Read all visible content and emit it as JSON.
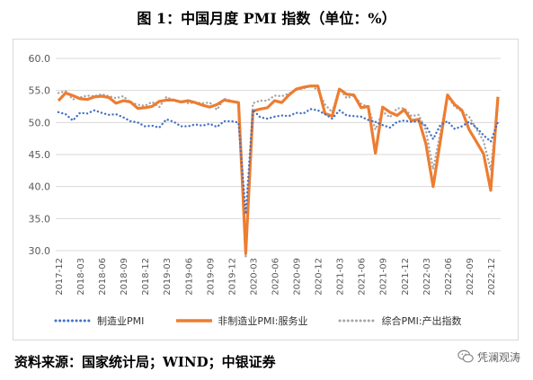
{
  "title": "图 1：中国月度 PMI 指数（单位：%）",
  "source": "资料来源：国家统计局；WIND；中银证券",
  "watermark": {
    "text": "凭澜观涛",
    "icon": "wechat-icon"
  },
  "chart_data": {
    "type": "line",
    "title": "图 1：中国月度 PMI 指数（单位：%）",
    "xlabel": "",
    "ylabel": "",
    "ylim": [
      30.0,
      60.0
    ],
    "yticks": [
      "60.0",
      "55.0",
      "50.0",
      "45.0",
      "40.0",
      "35.0",
      "30.0"
    ],
    "xtick_labels": [
      "2017-12",
      "2018-03",
      "2018-06",
      "2018-09",
      "2018-12",
      "2019-03",
      "2019-06",
      "2019-09",
      "2019-12",
      "2020-03",
      "2020-06",
      "2020-09",
      "2020-12",
      "2021-03",
      "2021-06",
      "2021-09",
      "2021-12",
      "2022-03",
      "2022-06",
      "2022-09",
      "2022-12"
    ],
    "grid": "horizontal",
    "legend_position": "bottom",
    "colors": {
      "manufacturing": "#4472C4",
      "non_manufacturing": "#ED7D31",
      "composite": "#A5A5A5"
    },
    "x": [
      "2017-12",
      "2018-01",
      "2018-02",
      "2018-03",
      "2018-04",
      "2018-05",
      "2018-06",
      "2018-07",
      "2018-08",
      "2018-09",
      "2018-10",
      "2018-11",
      "2018-12",
      "2019-01",
      "2019-02",
      "2019-03",
      "2019-04",
      "2019-05",
      "2019-06",
      "2019-07",
      "2019-08",
      "2019-09",
      "2019-10",
      "2019-11",
      "2019-12",
      "2020-01",
      "2020-02",
      "2020-03",
      "2020-04",
      "2020-05",
      "2020-06",
      "2020-07",
      "2020-08",
      "2020-09",
      "2020-10",
      "2020-11",
      "2020-12",
      "2021-01",
      "2021-02",
      "2021-03",
      "2021-04",
      "2021-05",
      "2021-06",
      "2021-07",
      "2021-08",
      "2021-09",
      "2021-10",
      "2021-11",
      "2021-12",
      "2022-01",
      "2022-02",
      "2022-03",
      "2022-04",
      "2022-05",
      "2022-06",
      "2022-07",
      "2022-08",
      "2022-09",
      "2022-10",
      "2022-11",
      "2022-12",
      "2023-01"
    ],
    "series": [
      {
        "name": "制造业PMI",
        "style": "dotted",
        "values": [
          51.6,
          51.3,
          50.3,
          51.5,
          51.4,
          51.9,
          51.5,
          51.2,
          51.3,
          50.8,
          50.2,
          50.0,
          49.4,
          49.5,
          49.2,
          50.5,
          50.1,
          49.4,
          49.4,
          49.7,
          49.5,
          49.8,
          49.3,
          50.2,
          50.2,
          50.0,
          35.7,
          52.0,
          50.8,
          50.6,
          50.9,
          51.1,
          51.0,
          51.5,
          51.4,
          52.1,
          51.9,
          51.3,
          50.6,
          51.9,
          51.1,
          51.0,
          50.9,
          50.4,
          50.1,
          49.6,
          49.2,
          50.1,
          50.3,
          50.1,
          50.2,
          49.5,
          47.4,
          49.6,
          50.2,
          49.0,
          49.4,
          50.1,
          49.2,
          48.0,
          47.0,
          50.1
        ]
      },
      {
        "name": "非制造业PMI:服务业",
        "style": "solid",
        "values": [
          53.4,
          54.6,
          54.2,
          53.7,
          53.6,
          54.0,
          54.1,
          53.9,
          53.0,
          53.4,
          53.2,
          52.2,
          52.3,
          52.5,
          53.3,
          53.5,
          53.5,
          53.2,
          53.4,
          53.1,
          52.7,
          52.4,
          52.8,
          53.5,
          53.3,
          53.1,
          29.6,
          51.8,
          52.1,
          52.3,
          53.4,
          53.1,
          54.3,
          55.2,
          55.5,
          55.7,
          55.7,
          51.4,
          51.0,
          55.2,
          54.4,
          54.3,
          52.3,
          52.5,
          45.2,
          52.4,
          51.6,
          51.1,
          52.0,
          50.3,
          50.5,
          46.7,
          40.0,
          47.1,
          54.3,
          52.8,
          51.9,
          48.9,
          47.0,
          45.1,
          39.4,
          54.0
        ]
      },
      {
        "name": "综合PMI:产出指数",
        "style": "dotted",
        "values": [
          54.6,
          54.9,
          53.6,
          53.9,
          54.2,
          54.1,
          54.4,
          54.1,
          53.8,
          54.1,
          53.1,
          52.8,
          52.6,
          53.2,
          52.4,
          54.0,
          53.4,
          53.3,
          53.0,
          53.1,
          53.0,
          53.1,
          52.0,
          53.7,
          53.4,
          53.0,
          28.9,
          53.0,
          53.4,
          53.4,
          54.2,
          54.1,
          54.5,
          55.1,
          55.3,
          55.7,
          55.1,
          52.8,
          51.6,
          55.3,
          53.8,
          54.2,
          52.9,
          52.4,
          48.9,
          51.7,
          50.8,
          52.2,
          52.2,
          51.0,
          51.2,
          48.8,
          42.7,
          48.4,
          54.1,
          52.5,
          51.7,
          50.9,
          49.0,
          47.1,
          42.6,
          52.9
        ]
      }
    ]
  }
}
